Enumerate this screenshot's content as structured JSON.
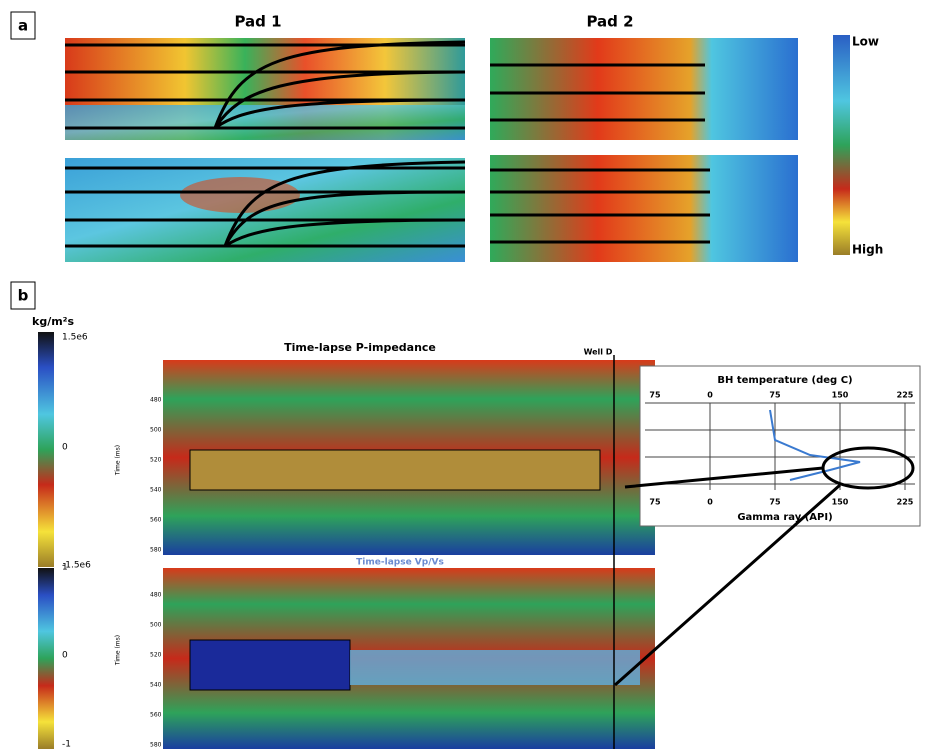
{
  "panel_a": {
    "label": "a",
    "pad1_title": "Pad 1",
    "pad2_title": "Pad 2",
    "colorbar": {
      "top": "Low",
      "bottom": "High"
    }
  },
  "panel_b": {
    "label": "b",
    "unit": "kg/m²s",
    "colorbar1": [
      "1.5e6",
      "0",
      "-1.5e6"
    ],
    "colorbar2": [
      "1",
      "0",
      "-1"
    ],
    "top_title": "Time-lapse P-impedance",
    "well": "Well D",
    "bottom_title": "Time-lapse Vp/Vs",
    "y_axis_label": "Time (ms)",
    "time_ticks": [
      "480",
      "500",
      "520",
      "540",
      "560",
      "580"
    ],
    "inset": {
      "top_title": "BH temperature (deg C)",
      "top_ticks": [
        "75",
        "0",
        "75",
        "150",
        "225"
      ],
      "bottom_title": "Gamma ray (API)",
      "bottom_ticks": [
        "75",
        "0",
        "75",
        "150",
        "225"
      ]
    }
  }
}
